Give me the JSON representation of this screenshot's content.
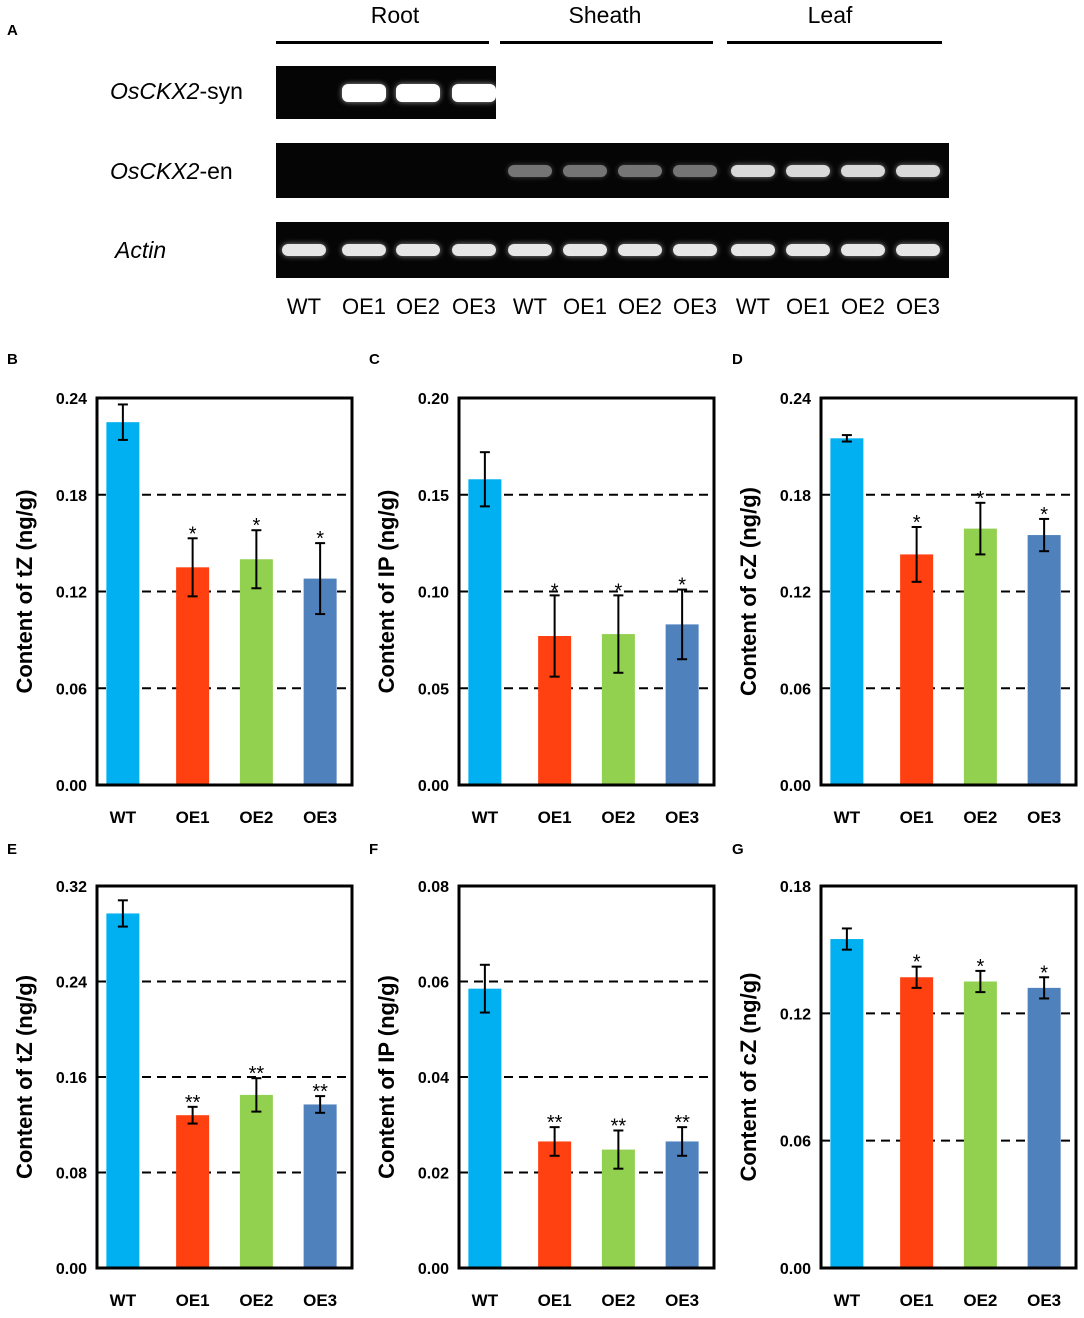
{
  "figure": {
    "panel_letters": [
      "A",
      "B",
      "C",
      "D",
      "E",
      "F",
      "G"
    ],
    "gel": {
      "tissues": [
        "Root",
        "Sheath",
        "Leaf"
      ],
      "rows": [
        {
          "label_italic": "OsCKX2",
          "label_suffix": "-syn",
          "bands": [
            0,
            1,
            1,
            1,
            0,
            0,
            0,
            0,
            0,
            0,
            0,
            0
          ]
        },
        {
          "label_italic": "OsCKX2",
          "label_suffix": "-en",
          "bands": [
            0,
            0,
            0,
            0,
            0.45,
            0.45,
            0.45,
            0.45,
            0.85,
            0.85,
            0.85,
            0.85
          ]
        },
        {
          "label_italic": "Actin",
          "label_suffix": "",
          "bands": [
            0.9,
            0.9,
            0.9,
            0.9,
            0.9,
            0.9,
            0.9,
            0.9,
            0.9,
            0.9,
            0.9,
            0.9
          ]
        }
      ],
      "lanes": [
        "WT",
        "OE1",
        "OE2",
        "OE3",
        "WT",
        "OE1",
        "OE2",
        "OE3",
        "WT",
        "OE1",
        "OE2",
        "OE3"
      ]
    }
  },
  "colors": {
    "WT": "#00b0f0",
    "OE1": "#ff4010",
    "OE2": "#92d050",
    "OE3": "#4f81bd"
  },
  "chart_data": [
    {
      "id": "B",
      "type": "bar",
      "ylabel": "Content of tZ (ng/g)",
      "categories": [
        "WT",
        "OE1",
        "OE2",
        "OE3"
      ],
      "values": [
        0.225,
        0.135,
        0.14,
        0.128
      ],
      "errors": [
        0.011,
        0.018,
        0.018,
        0.022
      ],
      "sig": [
        "",
        "*",
        "*",
        "*"
      ],
      "ylim": [
        0,
        0.24
      ],
      "ticks": [
        "0.00",
        "0.06",
        "0.12",
        "0.18",
        "0.24"
      ],
      "gridlines": [
        0.06,
        0.12,
        0.18
      ]
    },
    {
      "id": "C",
      "type": "bar",
      "ylabel": "Content of IP (ng/g)",
      "categories": [
        "WT",
        "OE1",
        "OE2",
        "OE3"
      ],
      "values": [
        0.158,
        0.077,
        0.078,
        0.083
      ],
      "errors": [
        0.014,
        0.021,
        0.02,
        0.018
      ],
      "sig": [
        "",
        "*",
        "*",
        "*"
      ],
      "ylim": [
        0,
        0.2
      ],
      "ticks": [
        "0.00",
        "0.05",
        "0.10",
        "0.15",
        "0.20"
      ],
      "gridlines": [
        0.05,
        0.1,
        0.15
      ]
    },
    {
      "id": "D",
      "type": "bar",
      "ylabel": "Content of cZ (ng/g)",
      "categories": [
        "WT",
        "OE1",
        "OE2",
        "OE3"
      ],
      "values": [
        0.215,
        0.143,
        0.159,
        0.155
      ],
      "errors": [
        0.002,
        0.017,
        0.016,
        0.01
      ],
      "sig": [
        "",
        "*",
        "*",
        "*"
      ],
      "ylim": [
        0,
        0.24
      ],
      "ticks": [
        "0.00",
        "0.06",
        "0.12",
        "0.18",
        "0.24"
      ],
      "gridlines": [
        0.06,
        0.12,
        0.18
      ]
    },
    {
      "id": "E",
      "type": "bar",
      "ylabel": "Content of tZ (ng/g)",
      "categories": [
        "WT",
        "OE1",
        "OE2",
        "OE3"
      ],
      "values": [
        0.297,
        0.128,
        0.145,
        0.137
      ],
      "errors": [
        0.011,
        0.007,
        0.014,
        0.007
      ],
      "sig": [
        "",
        "**",
        "**",
        "**"
      ],
      "ylim": [
        0,
        0.32
      ],
      "ticks": [
        "0.00",
        "0.08",
        "0.16",
        "0.24",
        "0.32"
      ],
      "gridlines": [
        0.08,
        0.16,
        0.24
      ]
    },
    {
      "id": "F",
      "type": "bar",
      "ylabel": "Content of IP (ng/g)",
      "categories": [
        "WT",
        "OE1",
        "OE2",
        "OE3"
      ],
      "values": [
        0.0585,
        0.0265,
        0.0248,
        0.0265
      ],
      "errors": [
        0.005,
        0.003,
        0.004,
        0.003
      ],
      "sig": [
        "",
        "**",
        "**",
        "**"
      ],
      "ylim": [
        0,
        0.08
      ],
      "ticks": [
        "0.00",
        "0.02",
        "0.04",
        "0.06",
        "0.08"
      ],
      "gridlines": [
        0.02,
        0.04,
        0.06
      ]
    },
    {
      "id": "G",
      "type": "bar",
      "ylabel": "Content of cZ (ng/g)",
      "categories": [
        "WT",
        "OE1",
        "OE2",
        "OE3"
      ],
      "values": [
        0.155,
        0.137,
        0.135,
        0.132
      ],
      "errors": [
        0.005,
        0.005,
        0.005,
        0.005
      ],
      "sig": [
        "",
        "*",
        "*",
        "*"
      ],
      "ylim": [
        0,
        0.18
      ],
      "ticks": [
        "0.00",
        "0.06",
        "0.12",
        "0.18"
      ],
      "gridlines": [
        0.06,
        0.12
      ]
    }
  ]
}
